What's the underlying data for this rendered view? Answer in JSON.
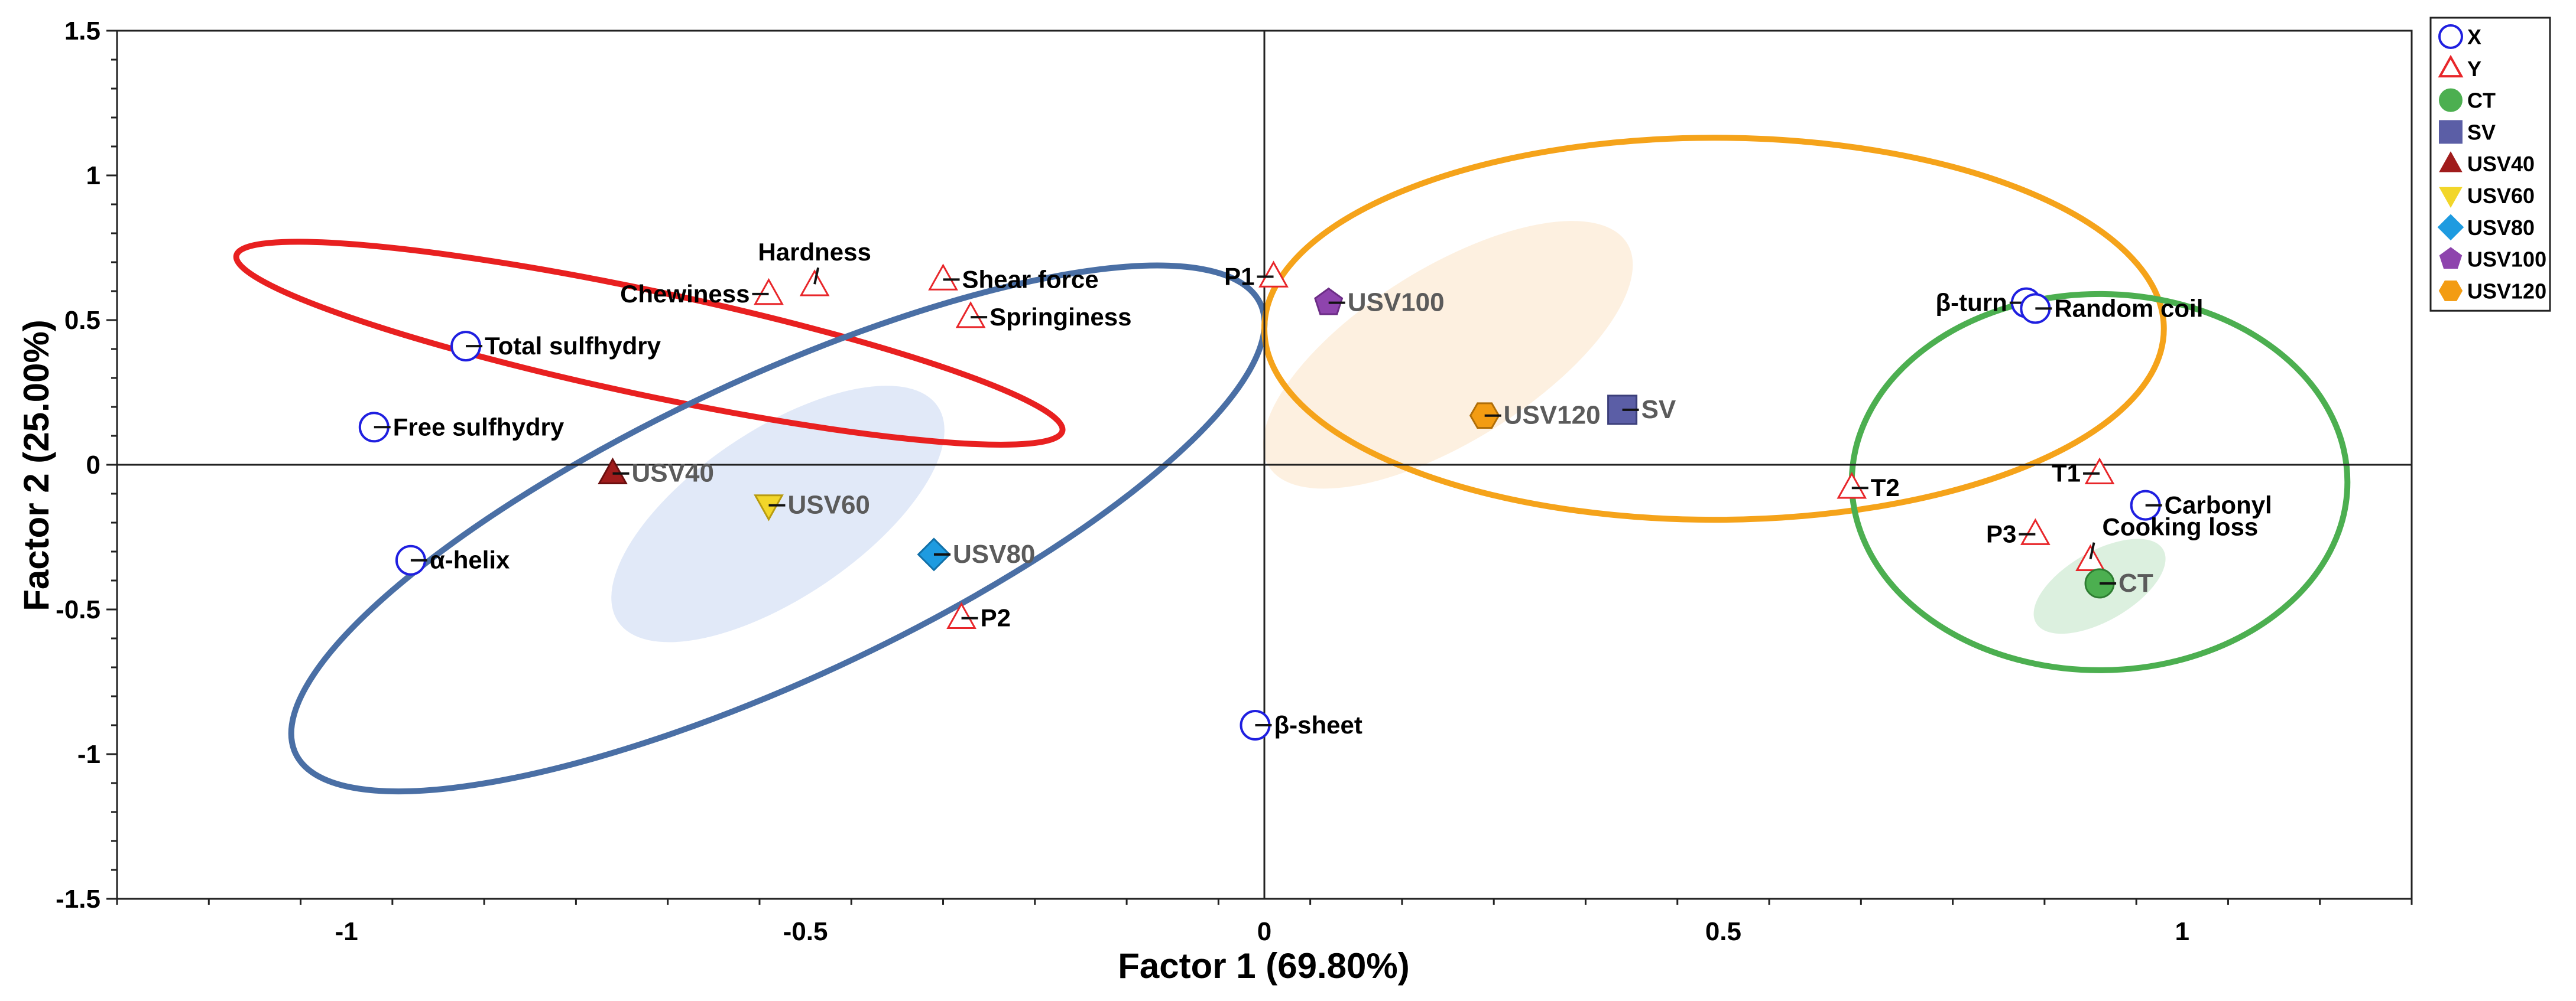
{
  "chart_data": {
    "type": "scatter",
    "xlabel": "Factor 1 (69.80%)",
    "ylabel": "Factor 2 (25.00%)",
    "xlim": [
      -1.25,
      1.25
    ],
    "ylim": [
      -1.5,
      1.5
    ],
    "xticks": [
      {
        "v": -1,
        "label": "-1"
      },
      {
        "v": -0.5,
        "label": "-0.5"
      },
      {
        "v": 0,
        "label": "0"
      },
      {
        "v": 0.5,
        "label": "0.5"
      },
      {
        "v": 1,
        "label": "1"
      }
    ],
    "yticks": [
      {
        "v": 1.5,
        "label": "1.5"
      },
      {
        "v": 1,
        "label": "1"
      },
      {
        "v": 0.5,
        "label": "0.5"
      },
      {
        "v": 0,
        "label": "0"
      },
      {
        "v": -0.5,
        "label": "-0.5"
      },
      {
        "v": -1,
        "label": "-1"
      },
      {
        "v": -1.5,
        "label": "-1.5"
      }
    ],
    "legend": [
      {
        "label": "X",
        "marker": "circle-open",
        "color": "#1f1fe0"
      },
      {
        "label": "Y",
        "marker": "triangle-open",
        "color": "#e8262a"
      },
      {
        "label": "CT",
        "marker": "circle",
        "color": "#4caf50"
      },
      {
        "label": "SV",
        "marker": "square",
        "color": "#5b5ea6"
      },
      {
        "label": "USV40",
        "marker": "triangle",
        "color": "#a01c1c"
      },
      {
        "label": "USV60",
        "marker": "triangle-down",
        "color": "#f2d62a"
      },
      {
        "label": "USV80",
        "marker": "diamond",
        "color": "#1e9be0"
      },
      {
        "label": "USV100",
        "marker": "pentagon",
        "color": "#8e44ad"
      },
      {
        "label": "USV120",
        "marker": "hexagon",
        "color": "#f39c12"
      }
    ],
    "x_variables": [
      {
        "name": "Total sulfhydry",
        "x": -0.87,
        "y": 0.41
      },
      {
        "name": "Free sulfhydry",
        "x": -0.97,
        "y": 0.13
      },
      {
        "name": "α-helix",
        "x": -0.93,
        "y": -0.33
      },
      {
        "name": "β-sheet",
        "x": -0.01,
        "y": -0.9
      },
      {
        "name": "β-turn",
        "x": 0.83,
        "y": 0.56
      },
      {
        "name": "Random coil",
        "x": 0.84,
        "y": 0.54
      },
      {
        "name": "Carbonyl",
        "x": 0.96,
        "y": -0.14
      }
    ],
    "y_variables": [
      {
        "name": "Hardness",
        "x": -0.49,
        "y": 0.62
      },
      {
        "name": "Chewiness",
        "x": -0.54,
        "y": 0.59
      },
      {
        "name": "Shear force",
        "x": -0.35,
        "y": 0.64
      },
      {
        "name": "Springiness",
        "x": -0.32,
        "y": 0.51
      },
      {
        "name": "P2",
        "x": -0.33,
        "y": -0.53
      },
      {
        "name": "P1",
        "x": 0.01,
        "y": 0.65
      },
      {
        "name": "T2",
        "x": 0.64,
        "y": -0.08
      },
      {
        "name": "T1",
        "x": 0.91,
        "y": -0.03
      },
      {
        "name": "P3",
        "x": 0.84,
        "y": -0.24
      },
      {
        "name": "Cooking loss",
        "x": 0.9,
        "y": -0.33
      }
    ],
    "samples": [
      {
        "name": "CT",
        "x": 0.91,
        "y": -0.41,
        "marker": "circle",
        "color": "#4caf50"
      },
      {
        "name": "SV",
        "x": 0.39,
        "y": 0.19,
        "marker": "square",
        "color": "#5b5ea6"
      },
      {
        "name": "USV40",
        "x": -0.71,
        "y": -0.03,
        "marker": "triangle",
        "color": "#a01c1c"
      },
      {
        "name": "USV60",
        "x": -0.54,
        "y": -0.14,
        "marker": "triangle-down",
        "color": "#f2d62a"
      },
      {
        "name": "USV80",
        "x": -0.36,
        "y": -0.31,
        "marker": "diamond",
        "color": "#1e9be0"
      },
      {
        "name": "USV100",
        "x": 0.07,
        "y": 0.56,
        "marker": "pentagon",
        "color": "#8e44ad"
      },
      {
        "name": "USV120",
        "x": 0.24,
        "y": 0.17,
        "marker": "hexagon",
        "color": "#f39c12"
      }
    ],
    "group_ellipses": [
      {
        "name": "texture-group",
        "color": "#e82020",
        "cx": -0.67,
        "cy": 0.42,
        "rx": 0.46,
        "ry": 0.18,
        "angle": 12
      },
      {
        "name": "structure-group",
        "color": "#4a6fa5",
        "cx": -0.53,
        "cy": -0.22,
        "rx": 0.58,
        "ry": 0.52,
        "angle": -25
      },
      {
        "name": "sv-usv-group",
        "color": "#f5a31a",
        "cx": 0.49,
        "cy": 0.47,
        "rx": 0.49,
        "ry": 0.66,
        "angle": 0
      },
      {
        "name": "ct-group",
        "color": "#4caf50",
        "cx": 0.91,
        "cy": -0.06,
        "rx": 0.27,
        "ry": 0.65,
        "angle": 0
      }
    ],
    "shaded_regions": [
      {
        "name": "usv-low-region",
        "color": "#c9d7f2",
        "cx": -0.53,
        "cy": -0.17,
        "rx": 0.21,
        "ry": 0.29,
        "angle": -34
      },
      {
        "name": "sv-usv-high-region",
        "color": "#fbe3c6",
        "cx": 0.2,
        "cy": 0.38,
        "rx": 0.23,
        "ry": 0.3,
        "angle": -32
      },
      {
        "name": "ct-region",
        "color": "#bfe3c5",
        "cx": 0.91,
        "cy": -0.42,
        "rx": 0.08,
        "ry": 0.12,
        "angle": -30
      }
    ]
  }
}
